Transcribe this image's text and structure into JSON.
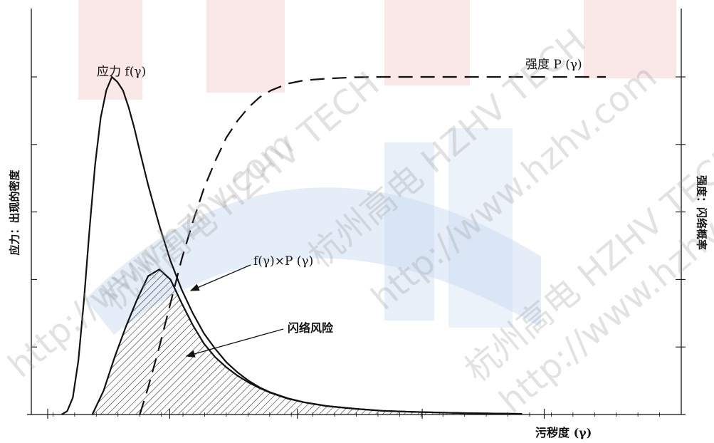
{
  "watermark": {
    "brand_colors": {
      "red": "#f5c9c9",
      "blue": "#c9dbf2"
    },
    "lines": [
      "杭州高电 HZHV TECH",
      "http://www.hzhv.com"
    ]
  },
  "labels": {
    "stress_curve": "应力 f(γ)",
    "strength_curve": "强度 P (γ)",
    "product_curve": "f(γ)×P (γ)",
    "flashover_risk": "闪络风险",
    "x_axis": "污秽度 (γ)",
    "y_left": "应力：出现的密度",
    "y_right": "强度：闪络概率"
  },
  "chart_data": {
    "type": "line",
    "title": "",
    "xlabel": "污秽度 (γ)",
    "ylabel_left": "应力：出现的密度",
    "ylabel_right": "强度：闪络概率",
    "xlim": [
      0,
      10
    ],
    "ylim": [
      0,
      1
    ],
    "tick_labels_shown": false,
    "series": [
      {
        "name": "应力 f(γ)",
        "style": "solid",
        "x": [
          0.25,
          0.35,
          0.45,
          0.55,
          0.65,
          0.75,
          0.85,
          0.95,
          1.05,
          1.15,
          1.25,
          1.35,
          1.45,
          1.55,
          1.65,
          1.8,
          2.0,
          2.2,
          2.4,
          2.6,
          2.8,
          3.0,
          3.2,
          3.4,
          3.6,
          3.8,
          4.0,
          4.3,
          4.6,
          5.0,
          5.5,
          6.0,
          6.5,
          7.0,
          7.5,
          8.0,
          8.5
        ],
        "y": [
          0.0,
          0.01,
          0.05,
          0.16,
          0.34,
          0.55,
          0.74,
          0.88,
          0.96,
          1.0,
          0.985,
          0.96,
          0.91,
          0.85,
          0.78,
          0.68,
          0.56,
          0.455,
          0.37,
          0.3,
          0.24,
          0.195,
          0.155,
          0.125,
          0.1,
          0.08,
          0.065,
          0.048,
          0.036,
          0.025,
          0.017,
          0.011,
          0.008,
          0.006,
          0.004,
          0.003,
          0.002
        ]
      },
      {
        "name": "强度 P (γ)",
        "style": "dashed",
        "x": [
          1.65,
          1.8,
          2.0,
          2.2,
          2.4,
          2.6,
          2.8,
          3.0,
          3.2,
          3.4,
          3.6,
          3.8,
          4.0,
          4.3,
          4.6,
          5.0,
          5.5,
          6.0,
          7.0,
          8.0,
          9.0,
          10.0
        ],
        "y": [
          0.0,
          0.08,
          0.2,
          0.33,
          0.46,
          0.57,
          0.67,
          0.75,
          0.82,
          0.87,
          0.91,
          0.94,
          0.96,
          0.98,
          0.99,
          0.995,
          0.999,
          1.0,
          1.0,
          1.0,
          1.0,
          1.0
        ]
      },
      {
        "name": "f(γ)×P (γ)",
        "style": "solid-hatched",
        "x": [
          0.8,
          1.0,
          1.2,
          1.4,
          1.6,
          1.8,
          2.0,
          2.2,
          2.4,
          2.6,
          2.8,
          3.0,
          3.2,
          3.4,
          3.6,
          3.8,
          4.0,
          4.3,
          4.6,
          5.0,
          5.5,
          6.0,
          6.5,
          7.0,
          7.5,
          8.0,
          8.5
        ],
        "y": [
          0.0,
          0.07,
          0.17,
          0.26,
          0.34,
          0.41,
          0.43,
          0.4,
          0.33,
          0.265,
          0.21,
          0.17,
          0.14,
          0.115,
          0.095,
          0.078,
          0.064,
          0.047,
          0.036,
          0.025,
          0.017,
          0.011,
          0.008,
          0.006,
          0.004,
          0.003,
          0.002
        ]
      }
    ]
  }
}
